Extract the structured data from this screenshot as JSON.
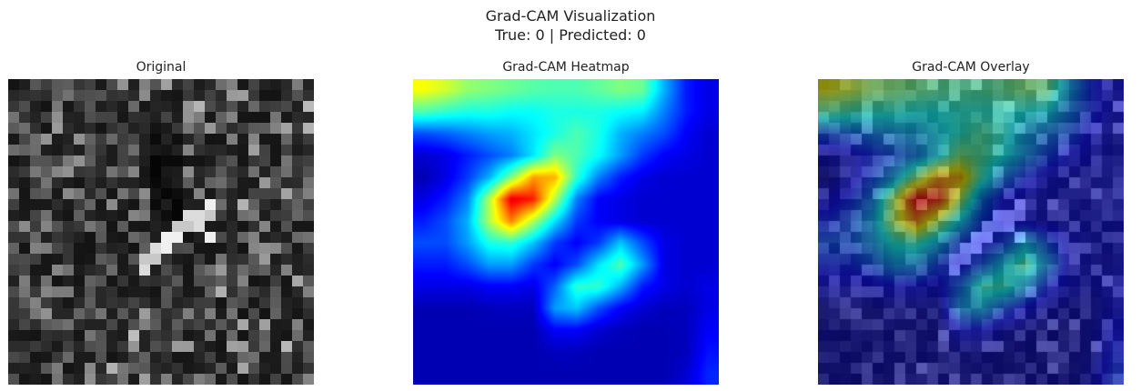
{
  "figure": {
    "suptitle_line1": "Grad-CAM Visualization",
    "suptitle_line2": "True: 0 | Predicted: 0"
  },
  "panels": [
    {
      "title": "Original"
    },
    {
      "title": "Grad-CAM Heatmap"
    },
    {
      "title": "Grad-CAM Overlay"
    }
  ],
  "chart_data": {
    "type": "heatmap",
    "colormap": "jet",
    "overlay_alpha": 0.5,
    "axes": "off",
    "heat_grid_14x14": [
      [
        0.62,
        0.58,
        0.52,
        0.5,
        0.48,
        0.46,
        0.45,
        0.45,
        0.47,
        0.5,
        0.48,
        0.3,
        0.15,
        0.1
      ],
      [
        0.45,
        0.42,
        0.4,
        0.4,
        0.38,
        0.38,
        0.4,
        0.4,
        0.4,
        0.38,
        0.36,
        0.25,
        0.15,
        0.1
      ],
      [
        0.2,
        0.22,
        0.25,
        0.28,
        0.3,
        0.35,
        0.4,
        0.45,
        0.4,
        0.3,
        0.25,
        0.2,
        0.12,
        0.08
      ],
      [
        0.08,
        0.1,
        0.15,
        0.2,
        0.25,
        0.35,
        0.5,
        0.45,
        0.38,
        0.28,
        0.18,
        0.12,
        0.1,
        0.08
      ],
      [
        0.05,
        0.1,
        0.18,
        0.3,
        0.5,
        0.72,
        0.7,
        0.42,
        0.25,
        0.15,
        0.1,
        0.08,
        0.08,
        0.08
      ],
      [
        0.1,
        0.15,
        0.25,
        0.55,
        0.9,
        0.85,
        0.55,
        0.25,
        0.12,
        0.1,
        0.08,
        0.08,
        0.08,
        0.08
      ],
      [
        0.15,
        0.2,
        0.3,
        0.55,
        0.75,
        0.55,
        0.35,
        0.18,
        0.12,
        0.1,
        0.08,
        0.08,
        0.08,
        0.08
      ],
      [
        0.2,
        0.2,
        0.28,
        0.4,
        0.42,
        0.32,
        0.18,
        0.12,
        0.18,
        0.32,
        0.2,
        0.1,
        0.08,
        0.08
      ],
      [
        0.15,
        0.15,
        0.2,
        0.28,
        0.28,
        0.18,
        0.12,
        0.2,
        0.35,
        0.45,
        0.28,
        0.1,
        0.08,
        0.08
      ],
      [
        0.1,
        0.1,
        0.1,
        0.12,
        0.12,
        0.1,
        0.22,
        0.42,
        0.42,
        0.3,
        0.15,
        0.1,
        0.08,
        0.1
      ],
      [
        0.05,
        0.05,
        0.05,
        0.06,
        0.06,
        0.06,
        0.28,
        0.32,
        0.2,
        0.12,
        0.08,
        0.06,
        0.06,
        0.1
      ],
      [
        0.05,
        0.05,
        0.05,
        0.05,
        0.05,
        0.05,
        0.12,
        0.12,
        0.08,
        0.06,
        0.05,
        0.05,
        0.06,
        0.12
      ],
      [
        0.05,
        0.05,
        0.05,
        0.05,
        0.05,
        0.05,
        0.06,
        0.06,
        0.05,
        0.05,
        0.05,
        0.05,
        0.06,
        0.14
      ],
      [
        0.05,
        0.05,
        0.05,
        0.05,
        0.05,
        0.05,
        0.05,
        0.05,
        0.05,
        0.05,
        0.05,
        0.05,
        0.08,
        0.16
      ]
    ]
  }
}
